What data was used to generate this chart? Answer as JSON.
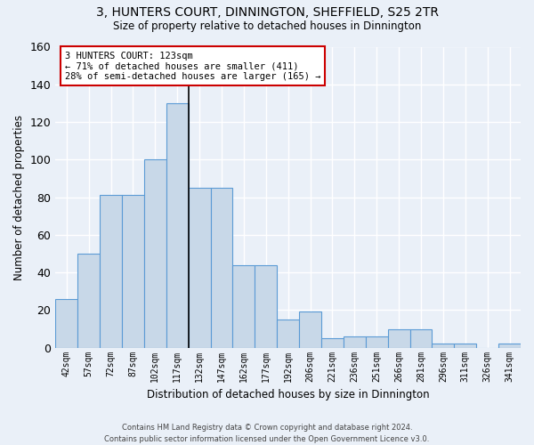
{
  "title1": "3, HUNTERS COURT, DINNINGTON, SHEFFIELD, S25 2TR",
  "title2": "Size of property relative to detached houses in Dinnington",
  "xlabel": "Distribution of detached houses by size in Dinnington",
  "ylabel": "Number of detached properties",
  "categories": [
    "42sqm",
    "57sqm",
    "72sqm",
    "87sqm",
    "102sqm",
    "117sqm",
    "132sqm",
    "147sqm",
    "162sqm",
    "177sqm",
    "192sqm",
    "206sqm",
    "221sqm",
    "236sqm",
    "251sqm",
    "266sqm",
    "281sqm",
    "296sqm",
    "311sqm",
    "326sqm",
    "341sqm"
  ],
  "values": [
    26,
    50,
    81,
    81,
    100,
    130,
    85,
    85,
    44,
    44,
    15,
    19,
    5,
    6,
    6,
    10,
    10,
    2,
    2,
    0,
    2
  ],
  "bar_color": "#c8d8e8",
  "bar_edge_color": "#5b9bd5",
  "highlight_index": 5,
  "highlight_line_color": "#000000",
  "annotation_text": "3 HUNTERS COURT: 123sqm\n← 71% of detached houses are smaller (411)\n28% of semi-detached houses are larger (165) →",
  "annotation_box_color": "#ffffff",
  "annotation_border_color": "#cc0000",
  "ylim": [
    0,
    160
  ],
  "yticks": [
    0,
    20,
    40,
    60,
    80,
    100,
    120,
    140,
    160
  ],
  "bg_color": "#eaf0f8",
  "grid_color": "#ffffff",
  "footer": "Contains HM Land Registry data © Crown copyright and database right 2024.\nContains public sector information licensed under the Open Government Licence v3.0."
}
